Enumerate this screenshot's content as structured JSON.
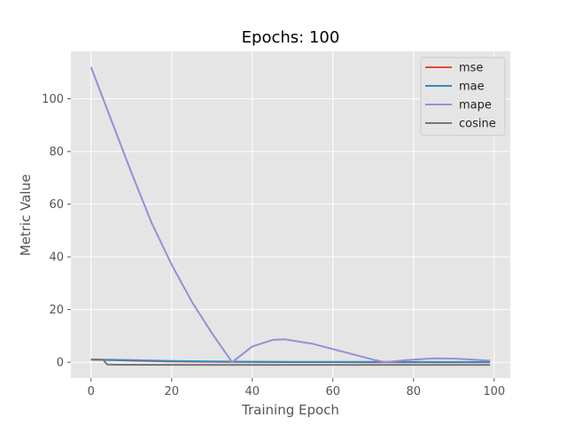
{
  "chart_data": {
    "type": "line",
    "title": "Epochs: 100",
    "xlabel": "Training Epoch",
    "ylabel": "Metric Value",
    "xlim": [
      -5,
      104
    ],
    "ylim": [
      -6,
      118
    ],
    "xticks": [
      0,
      20,
      40,
      60,
      80,
      100
    ],
    "yticks": [
      0,
      20,
      40,
      60,
      80,
      100
    ],
    "grid": true,
    "legend_position": "top-right",
    "series": [
      {
        "name": "mse",
        "color": "#E24A33",
        "x": [
          0,
          3,
          10,
          20,
          35,
          50,
          70,
          99
        ],
        "y": [
          1.0,
          0.9,
          0.6,
          0.3,
          0.1,
          0.05,
          0.03,
          0.02
        ]
      },
      {
        "name": "mae",
        "color": "#348ABD",
        "x": [
          0,
          3,
          10,
          20,
          30,
          40,
          50,
          70,
          99
        ],
        "y": [
          1.1,
          1.0,
          0.8,
          0.5,
          0.3,
          0.2,
          0.15,
          0.1,
          0.08
        ]
      },
      {
        "name": "mape",
        "color": "#988ED5",
        "x": [
          0,
          5,
          10,
          15,
          20,
          25,
          30,
          35,
          40,
          45,
          48,
          55,
          60,
          65,
          70,
          73,
          78,
          85,
          90,
          95,
          99
        ],
        "y": [
          112,
          92,
          72,
          53,
          37,
          23,
          11,
          0,
          6,
          8.5,
          8.7,
          7,
          5,
          3,
          1,
          0,
          0.8,
          1.5,
          1.4,
          1.0,
          0.6
        ]
      },
      {
        "name": "cosine",
        "color": "#777777",
        "x": [
          0,
          3,
          4,
          10,
          30,
          50,
          70,
          99
        ],
        "y": [
          1.0,
          1.0,
          -0.9,
          -0.95,
          -0.98,
          -0.99,
          -0.99,
          -1.0
        ]
      }
    ]
  }
}
